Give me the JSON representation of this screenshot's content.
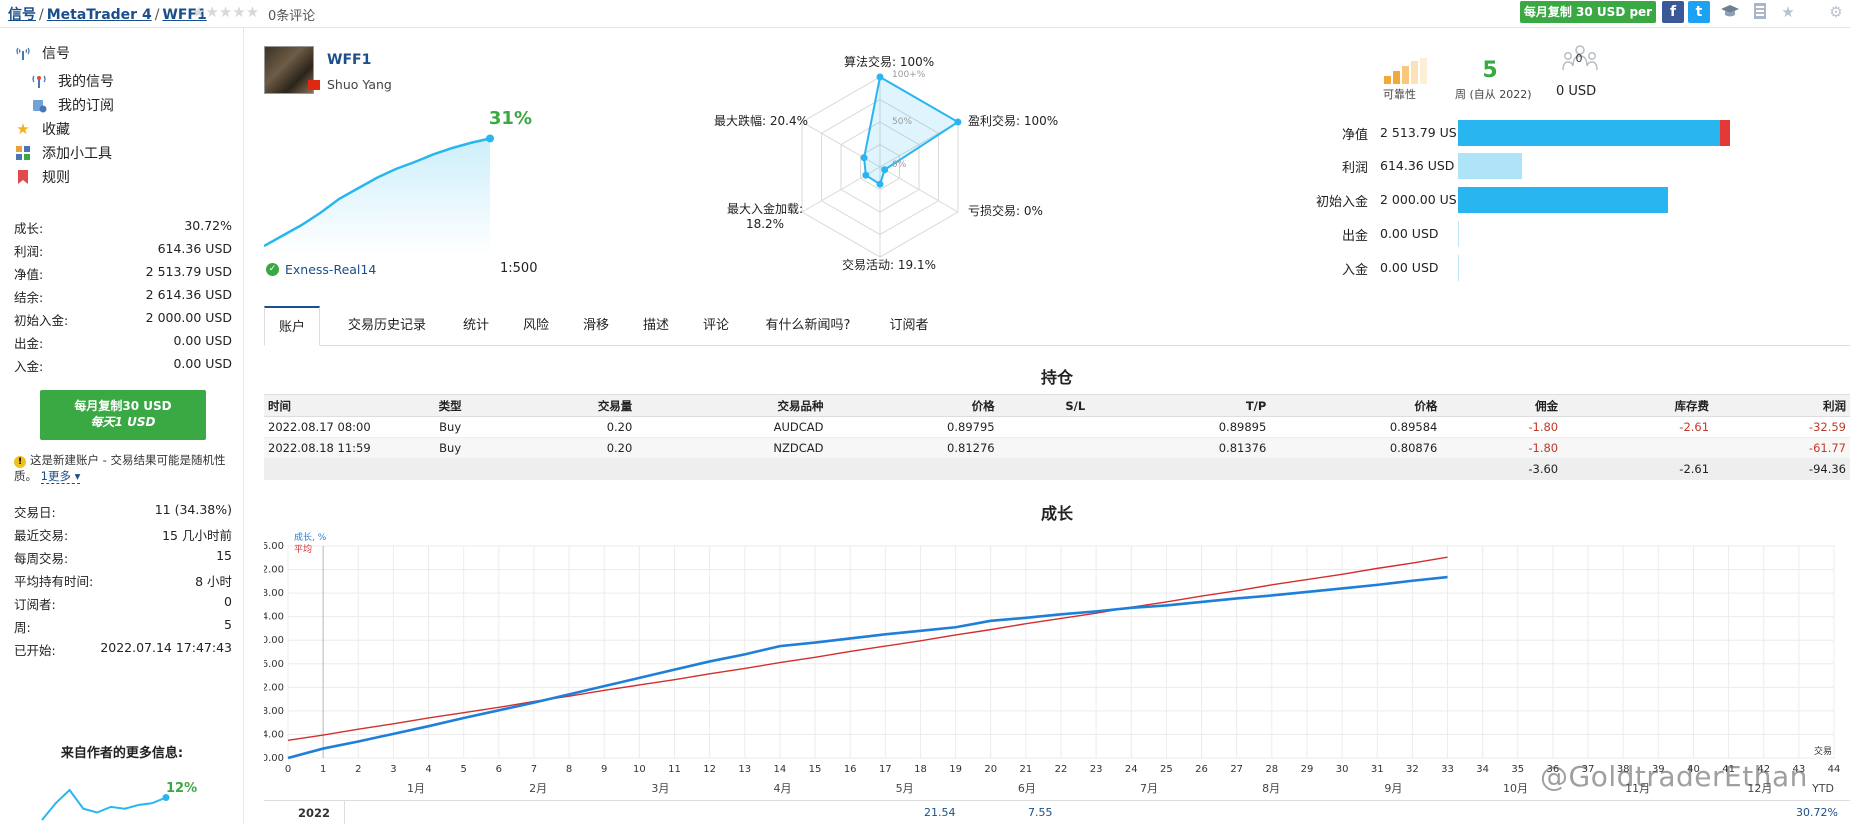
{
  "breadcrumb": {
    "signals": "信号",
    "platform": "MetaTrader 4",
    "name": "WFF1",
    "sep": "/"
  },
  "rating": {
    "stars": "★★★★★",
    "reviews": "0条评论"
  },
  "top": {
    "copy_button": "每月复制 30 USD per",
    "facebook": "f",
    "twitter": "t"
  },
  "sidebar": {
    "nav": [
      {
        "label": "信号",
        "icon": "antenna-icon"
      },
      {
        "label": "我的信号",
        "icon": "broadcast-icon"
      },
      {
        "label": "我的订阅",
        "icon": "subscription-icon"
      },
      {
        "label": "收藏",
        "icon": "star-icon"
      },
      {
        "label": "添加小工具",
        "icon": "widget-icon"
      },
      {
        "label": "规则",
        "icon": "bookmark-icon"
      }
    ],
    "stats": [
      {
        "label": "成长:",
        "value": "30.72%"
      },
      {
        "label": "利润:",
        "value": "614.36 USD"
      },
      {
        "label": "净值:",
        "value": "2 513.79 USD"
      },
      {
        "label": "结余:",
        "value": "2 614.36 USD"
      },
      {
        "label": "初始入金:",
        "value": "2 000.00 USD"
      },
      {
        "label": "出金:",
        "value": "0.00 USD"
      },
      {
        "label": "入金:",
        "value": "0.00 USD"
      }
    ],
    "copy_button": {
      "line1": "每月复制30 USD",
      "line2": "每天1 USD"
    },
    "warning": {
      "text": "这是新建账户 - 交易结果可能是随机性质。",
      "more": "1更多"
    },
    "stats2": [
      {
        "label": "交易日:",
        "value": "11 (34.38%)"
      },
      {
        "label": "最近交易:",
        "value": "15 几小时前"
      },
      {
        "label": "每周交易:",
        "value": "15"
      },
      {
        "label": "平均持有时间:",
        "value": "8 小时"
      },
      {
        "label": "订阅者:",
        "value": "0"
      },
      {
        "label": "周:",
        "value": "5"
      },
      {
        "label": "已开始:",
        "value": "2022.07.14 17:47:43"
      }
    ],
    "author_more": "来自作者的更多信息:",
    "mini_growth": "12%"
  },
  "signal": {
    "name": "WFF1",
    "owner": "Shuo Yang",
    "growth": "31%",
    "broker": "Exness-Real14",
    "leverage": "1:500"
  },
  "radar": {
    "algo": "算法交易: 100%",
    "profit_trades": "盈利交易: 100%",
    "loss_trades": "亏损交易: 0%",
    "activity": "交易活动: 19.1%",
    "max_deposit_load": "最大入金加载:",
    "max_deposit_load_value": "18.2%",
    "max_drawdown": "最大跌幅: 20.4%",
    "tick_100": "100+%",
    "tick_50": "50%",
    "tick_0": "0%"
  },
  "header_stats": {
    "reliability": "可靠性",
    "weeks": "5",
    "weeks_label": "周 (自从 2022)",
    "subscribers": "0",
    "subscribers_usd": "0 USD",
    "rows": [
      {
        "label": "净值",
        "value": "2 513.79 USD"
      },
      {
        "label": "利润",
        "value": "614.36 USD"
      },
      {
        "label": "初始入金",
        "value": "2 000.00 USD"
      },
      {
        "label": "出金",
        "value": "0.00 USD"
      },
      {
        "label": "入金",
        "value": "0.00 USD"
      }
    ]
  },
  "tabs": [
    "账户",
    "交易历史记录",
    "统计",
    "风险",
    "滑移",
    "描述",
    "评论",
    "有什么新闻吗?",
    "订阅者"
  ],
  "positions": {
    "title": "持仓",
    "headers": [
      "时间",
      "类型",
      "交易量",
      "交易品种",
      "价格",
      "S/L",
      "T/P",
      "价格",
      "佣金",
      "库存费",
      "利润"
    ],
    "rows": [
      [
        "2022.08.17 08:00",
        "Buy",
        "0.20",
        "AUDCAD",
        "0.89795",
        "",
        "0.89895",
        "0.89584",
        "-1.80",
        "-2.61",
        "-32.59"
      ],
      [
        "2022.08.18 11:59",
        "Buy",
        "0.20",
        "NZDCAD",
        "0.81276",
        "",
        "0.81376",
        "0.80876",
        "-1.80",
        "",
        "-61.77"
      ]
    ],
    "totals": [
      "-3.60",
      "-2.61",
      "-94.36"
    ]
  },
  "growth_section": {
    "title": "成长",
    "legend_growth": "成长, %",
    "legend_avg": "平均",
    "trades_label": "交易",
    "months": [
      "1月",
      "2月",
      "3月",
      "4月",
      "5月",
      "6月",
      "7月",
      "8月",
      "9月",
      "10月",
      "11月",
      "12月"
    ],
    "year": "2022",
    "month_values": {
      "jul": "21.54",
      "aug": "7.55"
    },
    "ytd_label": "YTD",
    "ytd_value": "30.72%"
  },
  "watermark": "@GoldtraderEthan",
  "colors": {
    "green": "#3aa843",
    "link": "#1a4f8b",
    "bar_blue": "#29b6f0",
    "bar_light": "#aee3f8",
    "bar_red": "#e53935",
    "line_blue": "#1e7fd8",
    "line_red": "#d32f2f"
  },
  "chart_data": [
    {
      "type": "line",
      "x": [
        0,
        1,
        2,
        3,
        4,
        5,
        6,
        7,
        8,
        9,
        10,
        11,
        12,
        13,
        14,
        15,
        16,
        17,
        18,
        19,
        20,
        21,
        22,
        23,
        24,
        25,
        26,
        27,
        28,
        29,
        30,
        31,
        32,
        33
      ],
      "xlim": [
        0,
        44
      ],
      "ylim": [
        0,
        36
      ],
      "yticks": [
        "0.00",
        "4.00",
        "8.00",
        "12.00",
        "16.00",
        "20.00",
        "24.00",
        "28.00",
        "32.00",
        "36.00"
      ],
      "series": [
        {
          "name": "成长, %",
          "values": [
            0,
            1.6,
            2.8,
            4.1,
            5.4,
            6.8,
            8.1,
            9.4,
            10.8,
            12.2,
            13.6,
            15.0,
            16.4,
            17.6,
            19.0,
            19.6,
            20.3,
            21.0,
            21.6,
            22.2,
            23.3,
            23.8,
            24.4,
            24.9,
            25.5,
            25.9,
            26.5,
            27.1,
            27.6,
            28.2,
            28.8,
            29.4,
            30.1,
            30.72
          ]
        },
        {
          "name": "平均",
          "values": [
            3.0,
            3.9,
            4.9,
            5.8,
            6.8,
            7.7,
            8.6,
            9.6,
            10.5,
            11.5,
            12.4,
            13.3,
            14.3,
            15.2,
            16.2,
            17.1,
            18.1,
            19.0,
            19.9,
            20.9,
            21.8,
            22.8,
            23.7,
            24.6,
            25.6,
            26.5,
            27.5,
            28.4,
            29.4,
            30.3,
            31.2,
            32.2,
            33.1,
            34.1
          ]
        }
      ]
    },
    {
      "type": "area",
      "series": [
        {
          "values": [
            0,
            3,
            6,
            9.5,
            13.5,
            16.5,
            19.5,
            22,
            24,
            26.2,
            28,
            29.5,
            30.72
          ]
        }
      ],
      "ylim": [
        0,
        32
      ]
    },
    {
      "type": "radar",
      "categories": [
        "算法交易",
        "盈利交易",
        "亏损交易",
        "交易活动",
        "最大入金加载",
        "最大跌幅"
      ],
      "values": [
        100,
        100,
        0,
        19.1,
        18.2,
        20.4
      ]
    },
    {
      "type": "bar",
      "categories": [
        "净值",
        "利润",
        "初始入金",
        "出金",
        "入金"
      ],
      "values": [
        2513.79,
        614.36,
        2000.0,
        0,
        0
      ]
    },
    {
      "type": "line",
      "series": [
        {
          "values": [
            0,
            9,
            16,
            6,
            4,
            7,
            6,
            8,
            9,
            12
          ]
        }
      ],
      "title": "12%"
    }
  ]
}
